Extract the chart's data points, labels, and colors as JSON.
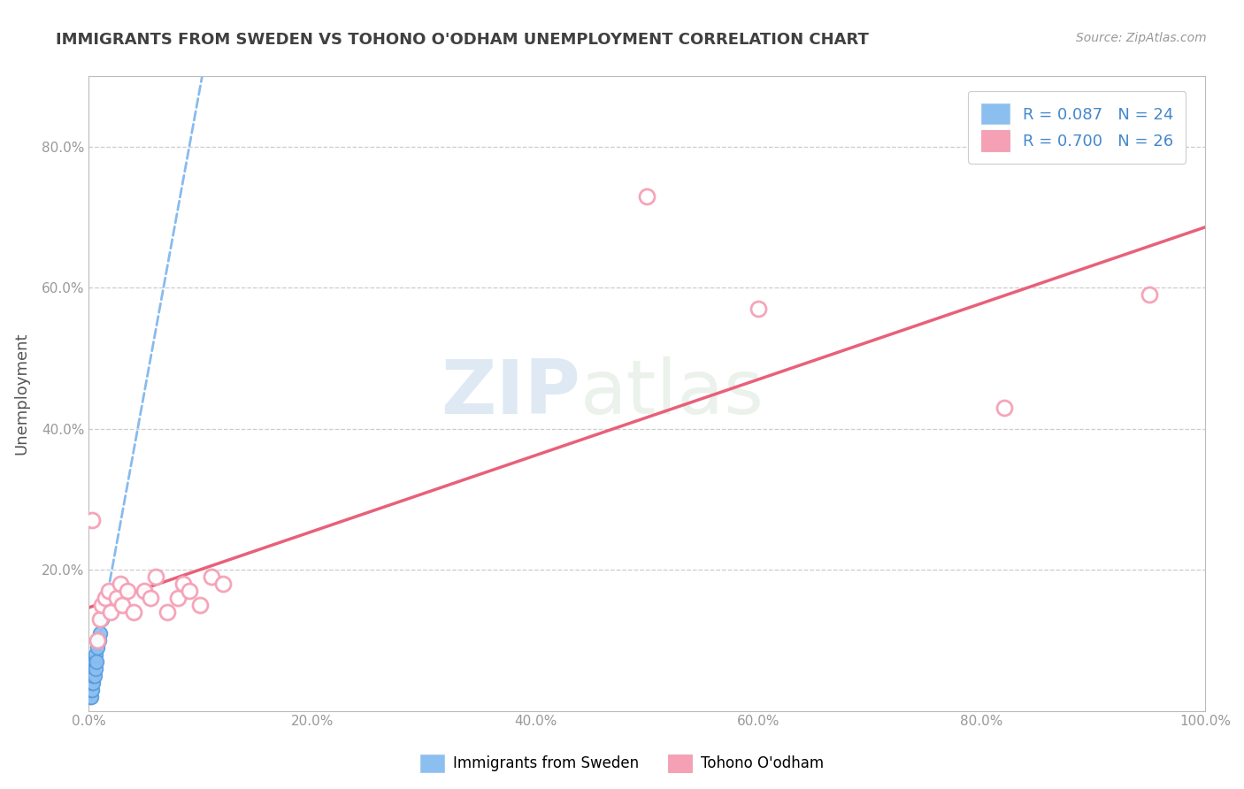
{
  "title": "IMMIGRANTS FROM SWEDEN VS TOHONO O'ODHAM UNEMPLOYMENT CORRELATION CHART",
  "source": "Source: ZipAtlas.com",
  "ylabel": "Unemployment",
  "xlim": [
    0.0,
    1.0
  ],
  "ylim": [
    0.0,
    0.9
  ],
  "xtick_labels": [
    "0.0%",
    "20.0%",
    "40.0%",
    "60.0%",
    "80.0%",
    "100.0%"
  ],
  "xtick_vals": [
    0.0,
    0.2,
    0.4,
    0.6,
    0.8,
    1.0
  ],
  "ytick_labels": [
    "20.0%",
    "40.0%",
    "60.0%",
    "80.0%"
  ],
  "ytick_vals": [
    0.2,
    0.4,
    0.6,
    0.8
  ],
  "watermark_zip": "ZIP",
  "watermark_atlas": "atlas",
  "legend_label_sweden": "R = 0.087   N = 24",
  "legend_label_tohono": "R = 0.700   N = 26",
  "bottom_legend_sweden": "Immigrants from Sweden",
  "bottom_legend_tohono": "Tohono O'odham",
  "sweden_x": [
    0.001,
    0.001,
    0.001,
    0.002,
    0.002,
    0.002,
    0.002,
    0.002,
    0.003,
    0.003,
    0.003,
    0.003,
    0.004,
    0.004,
    0.004,
    0.005,
    0.005,
    0.006,
    0.006,
    0.007,
    0.008,
    0.009,
    0.01,
    0.012
  ],
  "sweden_y": [
    0.02,
    0.03,
    0.04,
    0.02,
    0.03,
    0.04,
    0.05,
    0.06,
    0.03,
    0.04,
    0.05,
    0.06,
    0.04,
    0.05,
    0.07,
    0.05,
    0.07,
    0.06,
    0.08,
    0.07,
    0.09,
    0.1,
    0.11,
    0.13
  ],
  "tohono_x": [
    0.003,
    0.008,
    0.01,
    0.012,
    0.015,
    0.018,
    0.02,
    0.025,
    0.028,
    0.03,
    0.035,
    0.04,
    0.05,
    0.055,
    0.06,
    0.07,
    0.08,
    0.085,
    0.09,
    0.1,
    0.11,
    0.12,
    0.5,
    0.6,
    0.82,
    0.95
  ],
  "tohono_y": [
    0.27,
    0.1,
    0.13,
    0.15,
    0.16,
    0.17,
    0.14,
    0.16,
    0.18,
    0.15,
    0.17,
    0.14,
    0.17,
    0.16,
    0.19,
    0.14,
    0.16,
    0.18,
    0.17,
    0.15,
    0.19,
    0.18,
    0.73,
    0.57,
    0.43,
    0.59
  ],
  "sweden_color": "#8bbff0",
  "sweden_edge_color": "#5599dd",
  "tohono_color": "#f5a0b5",
  "tohono_edge_color": "#e06080",
  "sweden_trend_color": "#88bbee",
  "tohono_trend_color": "#e8607a",
  "grid_color": "#cccccc",
  "bg_color": "#ffffff",
  "title_color": "#404040",
  "axis_color": "#999999",
  "source_color": "#999999"
}
